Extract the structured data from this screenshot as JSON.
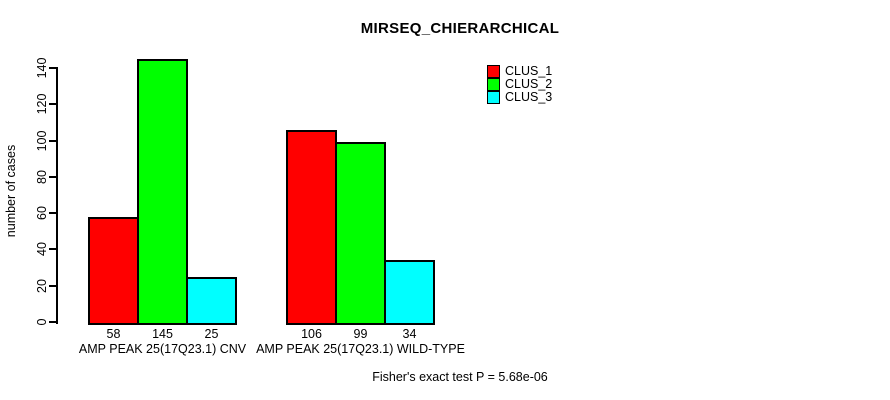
{
  "chart_data": {
    "type": "bar",
    "title": "MIRSEQ_CHIERARCHICAL",
    "ylabel": "number of cases",
    "xlabel": "",
    "categories": [
      "AMP PEAK 25(17Q23.1) CNV",
      "AMP PEAK 25(17Q23.1) WILD-TYPE"
    ],
    "series": [
      {
        "name": "CLUS_1",
        "color": "#ff0000",
        "values": [
          58,
          106
        ]
      },
      {
        "name": "CLUS_2",
        "color": "#00ff00",
        "values": [
          145,
          99
        ]
      },
      {
        "name": "CLUS_3",
        "color": "#00ffff",
        "values": [
          25,
          34
        ]
      }
    ],
    "yticks": [
      0,
      20,
      40,
      60,
      80,
      100,
      120,
      140
    ],
    "ylim": [
      0,
      140
    ],
    "grid": false,
    "bar_value_labels": true,
    "legend": {
      "position": "top-right",
      "entries": [
        "CLUS_1",
        "CLUS_2",
        "CLUS_3"
      ]
    },
    "annotation": "Fisher's exact test P = 5.68e-06"
  }
}
